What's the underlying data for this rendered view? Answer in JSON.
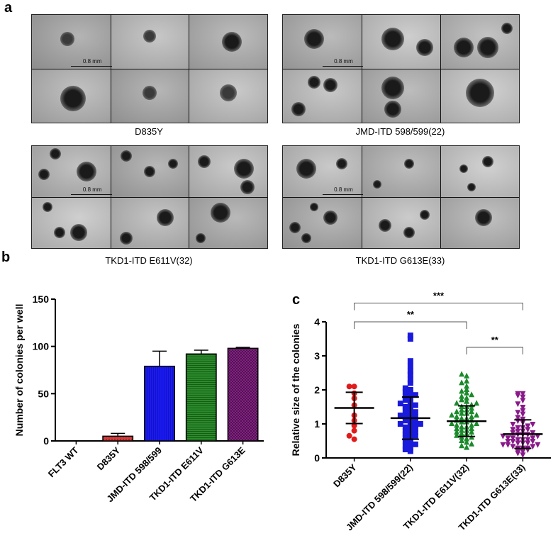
{
  "figure": {
    "panel_a": {
      "letter": "a",
      "scale_label": "0.8 mm",
      "groups": [
        {
          "caption": "D835Y"
        },
        {
          "caption": "JMD-ITD 598/599(22)"
        },
        {
          "caption": "TKD1-ITD E611V(32)"
        },
        {
          "caption": "TKD1-ITD G613E(33)"
        }
      ]
    },
    "panel_b": {
      "letter": "b"
    },
    "panel_c": {
      "letter": "c"
    }
  },
  "chart_data": [
    {
      "type": "bar",
      "panel": "b",
      "categories": [
        "FLT3 WT",
        "D835Y",
        "JMD-ITD 598/599",
        "TKD1-ITD E611V",
        "TKD1-ITD G613E"
      ],
      "values": [
        0,
        5,
        79,
        92,
        98
      ],
      "errors": [
        0,
        3,
        16,
        4,
        1
      ],
      "ylabel": "Number of colonies per well",
      "ylim": [
        0,
        150
      ],
      "yticks": [
        0,
        50,
        100,
        150
      ],
      "colors": [
        "#ffffff",
        "#b22222",
        "#1010dd",
        "#1a7a1a",
        "#7a1a7a"
      ],
      "patterns": [
        "none",
        "dots",
        "vertical-lines",
        "horizontal-lines",
        "crosshatch"
      ]
    },
    {
      "type": "scatter",
      "panel": "c",
      "categories": [
        "D835Y",
        "JMD-ITD 598/599(22)",
        "TKD1-ITD E611V(32)",
        "TKD1-ITD G613E(33)"
      ],
      "ylabel": "Relative size of the colonies",
      "ylim": [
        0,
        4
      ],
      "yticks": [
        0,
        1,
        2,
        3,
        4
      ],
      "series": [
        {
          "marker": "circle",
          "color": "#e11a1a",
          "mean": 1.47,
          "sd": 0.46,
          "values": [
            0.55,
            0.65,
            0.8,
            0.95,
            1.1,
            1.25,
            1.55,
            1.75,
            1.9,
            2.1,
            2.1
          ]
        },
        {
          "marker": "square",
          "color": "#1a1add",
          "mean": 1.17,
          "sd": 0.62,
          "values": [
            3.6,
            3.5,
            2.85,
            2.7,
            2.55,
            2.45,
            2.3,
            2.2,
            2.05,
            2.0,
            1.95,
            1.9,
            1.85,
            1.8,
            1.75,
            1.7,
            1.65,
            1.6,
            1.55,
            1.5,
            1.45,
            1.4,
            1.35,
            1.3,
            1.25,
            1.2,
            1.15,
            1.1,
            1.05,
            1.0,
            0.95,
            0.9,
            0.85,
            0.8,
            0.75,
            0.7,
            0.65,
            0.6,
            0.55,
            0.5,
            0.45,
            0.4,
            0.35,
            0.3,
            0.25,
            0.2,
            1.3,
            1.1,
            0.9,
            0.7,
            1.5,
            1.2,
            1.0,
            0.8
          ]
        },
        {
          "marker": "triangle-up",
          "color": "#1a8a2a",
          "mean": 1.08,
          "sd": 0.45,
          "values": [
            2.45,
            2.4,
            2.25,
            2.2,
            2.1,
            2.0,
            1.95,
            1.9,
            1.85,
            1.8,
            1.75,
            1.7,
            1.65,
            1.6,
            1.55,
            1.5,
            1.45,
            1.4,
            1.35,
            1.3,
            1.25,
            1.2,
            1.15,
            1.1,
            1.05,
            1.0,
            0.95,
            0.9,
            0.85,
            0.8,
            0.75,
            0.7,
            0.65,
            0.6,
            0.55,
            0.5,
            0.45,
            0.4,
            0.35,
            0.3,
            1.3,
            1.2,
            1.1,
            1.0,
            0.9,
            0.8,
            1.4,
            1.15,
            0.95,
            0.85,
            1.25,
            1.05,
            0.7,
            0.6,
            1.6,
            1.5,
            1.35,
            0.75
          ]
        },
        {
          "marker": "triangle-down",
          "color": "#8a1a8a",
          "mean": 0.7,
          "sd": 0.42,
          "values": [
            1.9,
            1.9,
            1.85,
            1.8,
            1.7,
            1.6,
            1.5,
            1.4,
            1.35,
            1.3,
            1.2,
            1.15,
            1.1,
            1.05,
            1.0,
            0.95,
            0.9,
            0.85,
            0.8,
            0.75,
            0.7,
            0.65,
            0.6,
            0.55,
            0.5,
            0.45,
            0.4,
            0.35,
            0.3,
            0.25,
            0.2,
            0.15,
            0.1,
            0.8,
            0.7,
            0.6,
            0.5,
            0.4,
            0.3,
            0.9,
            0.75,
            0.65,
            0.55,
            0.45,
            0.35,
            1.0,
            0.85,
            0.6,
            0.5,
            0.4,
            0.3,
            0.2,
            0.7,
            0.55,
            0.45
          ]
        }
      ],
      "significance": [
        {
          "from": 0,
          "to": 3,
          "label": "***",
          "level": 4.55
        },
        {
          "from": 0,
          "to": 2,
          "label": "**",
          "level": 4.0
        },
        {
          "from": 2,
          "to": 3,
          "label": "**",
          "level": 3.25
        }
      ]
    }
  ]
}
